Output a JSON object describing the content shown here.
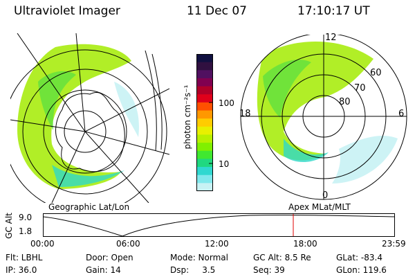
{
  "header": {
    "instrument": "Ultraviolet Imager",
    "date": "11 Dec 07",
    "time": "17:10:17 UT"
  },
  "colorbar": {
    "unit_label": "photon cm⁻²s⁻¹",
    "ticks": [
      "100",
      "10"
    ],
    "colors": [
      "#101040",
      "#301040",
      "#501060",
      "#800050",
      "#b00028",
      "#e0001a",
      "#ff5000",
      "#ff9800",
      "#ffcc00",
      "#e8f000",
      "#b8f000",
      "#80f000",
      "#40e830",
      "#20d880",
      "#30d8d0",
      "#80e8ec",
      "#c8f2f4"
    ]
  },
  "geo_map": {
    "label": "Geographic Lat/Lon"
  },
  "polar_map": {
    "label": "Apex MLat/MLT",
    "mlt_labels": {
      "top": "12",
      "left": "18",
      "right": "6",
      "bottom": "0"
    },
    "lat_labels": [
      "60",
      "70",
      "80"
    ]
  },
  "altitude_plot": {
    "ylabel": "GC Alt",
    "yticks": [
      "9.0",
      "1.8"
    ],
    "xticks": [
      "00:00",
      "06:00",
      "12:00",
      "18:00",
      "23:59"
    ],
    "marker_color": "#e00000"
  },
  "info": {
    "filter": "Flt: LBHL",
    "door": "Door: Open",
    "mode": "Mode: Normal",
    "gc_alt": "GC Alt: 8.5 Re",
    "glat": "GLat: -83.4",
    "ip": "IP: 36.0",
    "gain": "Gain: 14",
    "dsp": "Dsp:     3.5",
    "seq": "Seq: 39",
    "glon": "GLon: 119.6"
  }
}
